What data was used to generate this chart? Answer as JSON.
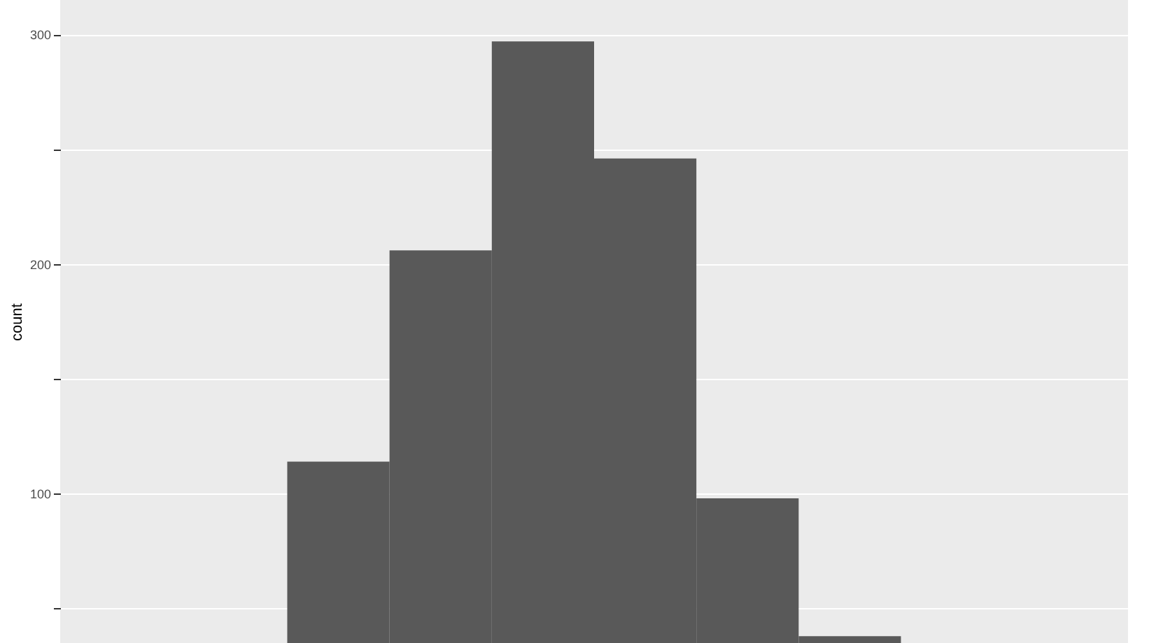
{
  "chart_data": {
    "type": "bar",
    "ylabel": "count",
    "categories": [
      null,
      null,
      null,
      null,
      null,
      null,
      null,
      null,
      null,
      null
    ],
    "values": [
      null,
      null,
      114,
      206,
      297,
      246,
      98,
      38,
      null,
      null
    ],
    "color": "#595959",
    "ylim": [
      35,
      315
    ],
    "yticks": [
      {
        "value": 50,
        "label": null
      },
      100,
      {
        "value": 150,
        "label": null
      },
      200,
      {
        "value": 250,
        "label": null
      },
      300
    ],
    "grid": "y",
    "tick_labels": "y"
  }
}
